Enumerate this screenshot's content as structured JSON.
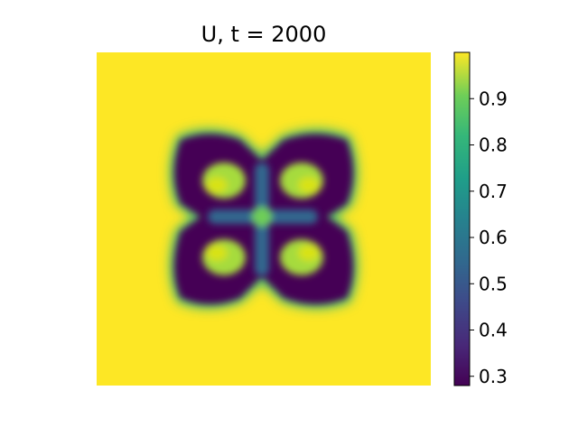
{
  "chart_data": {
    "type": "heatmap",
    "title": "U, t = 2000",
    "colormap": "viridis",
    "colorbar": {
      "range": [
        0.28,
        1.0
      ],
      "ticks": [
        0.3,
        0.4,
        0.5,
        0.6,
        0.7,
        0.8,
        0.9
      ],
      "tick_labels": [
        "0.3",
        "0.4",
        "0.5",
        "0.6",
        "0.7",
        "0.8",
        "0.9"
      ]
    },
    "axes_visible": false,
    "field_description": {
      "background_value": 0.99,
      "min_value": 0.28,
      "pattern": "four-lobed ring (spot pattern) centered in domain"
    }
  }
}
